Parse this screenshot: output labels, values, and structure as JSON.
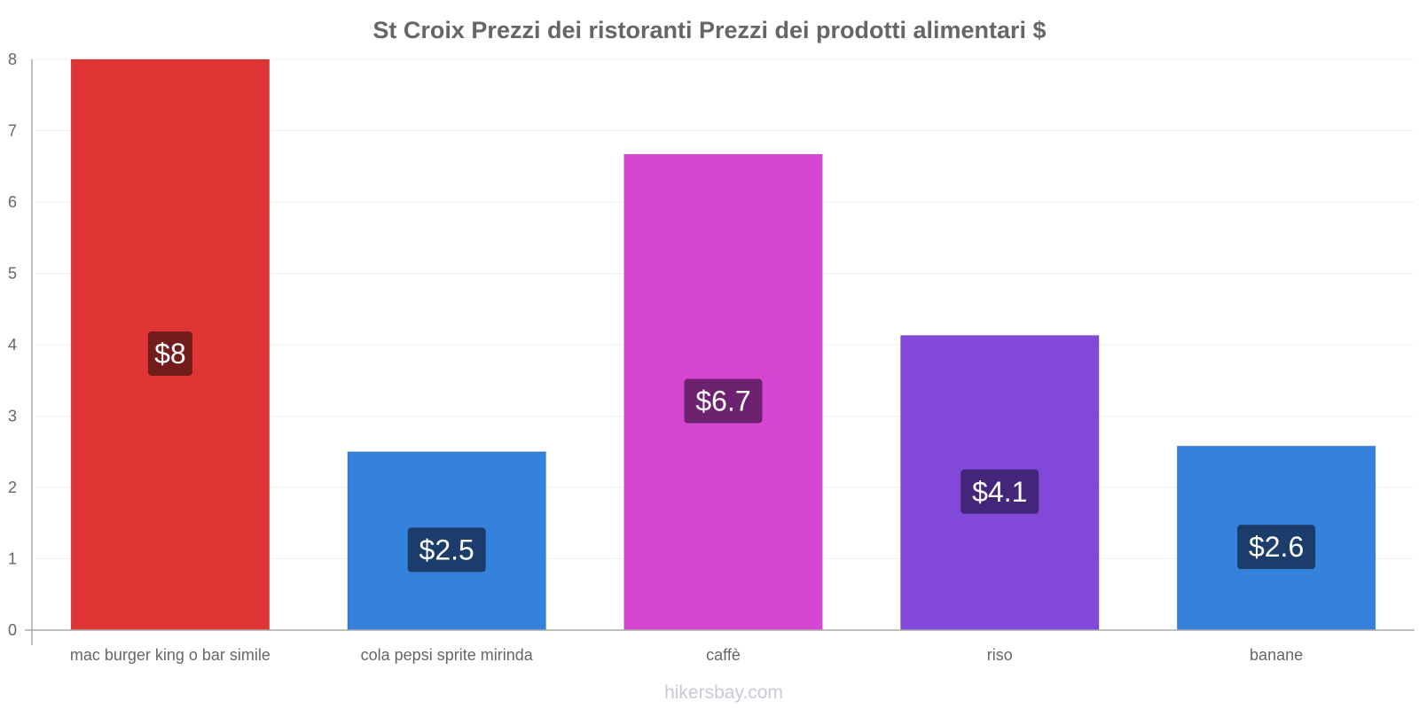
{
  "chart_data": {
    "type": "bar",
    "title": "St Croix Prezzi dei ristoranti Prezzi dei prodotti alimentari $",
    "xlabel": "",
    "ylabel": "",
    "ylim": [
      0,
      8
    ],
    "yticks": [
      "0",
      "1",
      "2",
      "3",
      "4",
      "5",
      "6",
      "7",
      "8"
    ],
    "categories": [
      "mac burger king o bar simile",
      "cola pepsi sprite mirinda",
      "caffè",
      "riso",
      "banane"
    ],
    "values": [
      8,
      2.5,
      6.67,
      4.13,
      2.58
    ],
    "value_labels": [
      "$8",
      "$2.5",
      "$6.7",
      "$4.1",
      "$2.6"
    ],
    "colors": [
      "#e03535",
      "#3582dd",
      "#d646d3",
      "#8248d9",
      "#3582dd"
    ],
    "label_bg_colors": [
      "#731c1c",
      "#1c3d6b",
      "#6d2270",
      "#43257a",
      "#1c3d6b"
    ],
    "grid": true,
    "legend": "none"
  },
  "watermark": "hikersbay.com"
}
